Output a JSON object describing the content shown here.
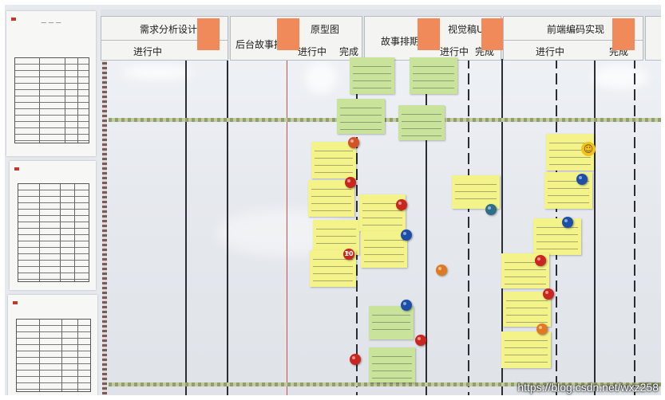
{
  "header": {
    "columns": [
      {
        "title": "需求分析设计",
        "status": "进行中"
      },
      {
        "title": "原型图",
        "prefix": "后台故事拆分",
        "status_a": "进行中",
        "status_b": "完成"
      },
      {
        "title": "视觉稿UI",
        "prefix": "故事排期",
        "status_a": "进行中",
        "status_b": "完成"
      },
      {
        "title": "前端编码实现",
        "status_a": "进行中",
        "status_b": "完成"
      }
    ]
  },
  "magnet_number": "10",
  "watermark": "https://blog.csdn.net/wxz258",
  "colors": {
    "sticky_yellow": "#f3f38a",
    "sticky_green": "#c9e39a",
    "tag_orange": "#f08a5a",
    "magnet_red": "#c8261f",
    "magnet_blue": "#1e4fa8",
    "magnet_orange": "#e07a22"
  }
}
